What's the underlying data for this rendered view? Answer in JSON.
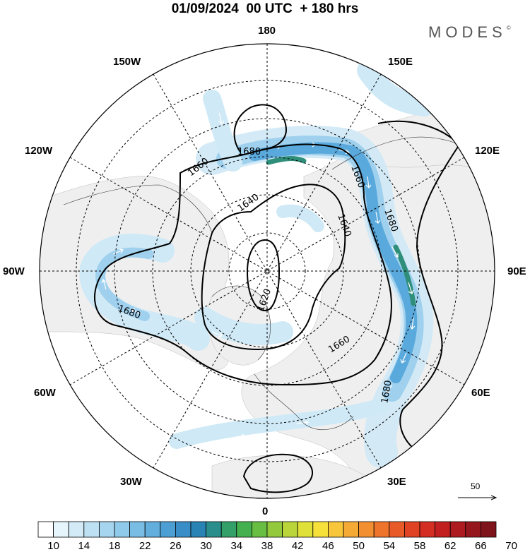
{
  "title": "01/09/2024  00 UTC  + 180 hrs",
  "brand": {
    "name": "MODES",
    "mark": "©"
  },
  "longitude_labels": {
    "top": "180",
    "bottom": "0",
    "left": "90W",
    "right": "90E",
    "upper_left_1": "150W",
    "upper_left_2": "120W",
    "lower_left_1": "60W",
    "lower_left_2": "30W",
    "upper_right_1": "150E",
    "upper_right_2": "120E",
    "lower_right_1": "60E",
    "lower_right_2": "30E"
  },
  "contour_labels": {
    "c1680_north": "1680",
    "c1660_northwest": "1660",
    "c1640_north": "1640",
    "c1660_northeast": "1660",
    "c1680_east": "1680",
    "c1640_east": "1640",
    "c1620_center": "1620",
    "c1680_west": "1680",
    "c1660_south": "1660",
    "c1680_southeast": "1680"
  },
  "reference_vector": {
    "label": "50"
  },
  "colorbar": {
    "labels": [
      "10",
      "14",
      "18",
      "22",
      "26",
      "30",
      "34",
      "38",
      "42",
      "46",
      "50",
      "54",
      "58",
      "62",
      "66",
      "70"
    ],
    "colors": [
      "#ffffff",
      "#e6f4fb",
      "#d2ebf7",
      "#bde1f3",
      "#a6d5ef",
      "#8fcaea",
      "#79bde5",
      "#62aedd",
      "#4d9fd3",
      "#3a8ec7",
      "#2a83b5",
      "#2a8f8c",
      "#33a069",
      "#45b04f",
      "#68bd43",
      "#93c93c",
      "#bad53a",
      "#dfe038",
      "#f6e13b",
      "#f7c63a",
      "#f5aa36",
      "#f28f31",
      "#ee742c",
      "#e85a27",
      "#e04224",
      "#d42d22",
      "#c21f20",
      "#ad1a1f",
      "#96161d",
      "#7f131b"
    ]
  },
  "colors": {
    "ocean": "#ffffff",
    "land": "#efefef",
    "contour": "#000000",
    "wind_light": "#cfe9f6",
    "wind_mid": "#9fd0ee",
    "wind_strong": "#5aa9dc",
    "wind_core": "#3d8fca",
    "wind_peak": "#2f8f7a"
  }
}
